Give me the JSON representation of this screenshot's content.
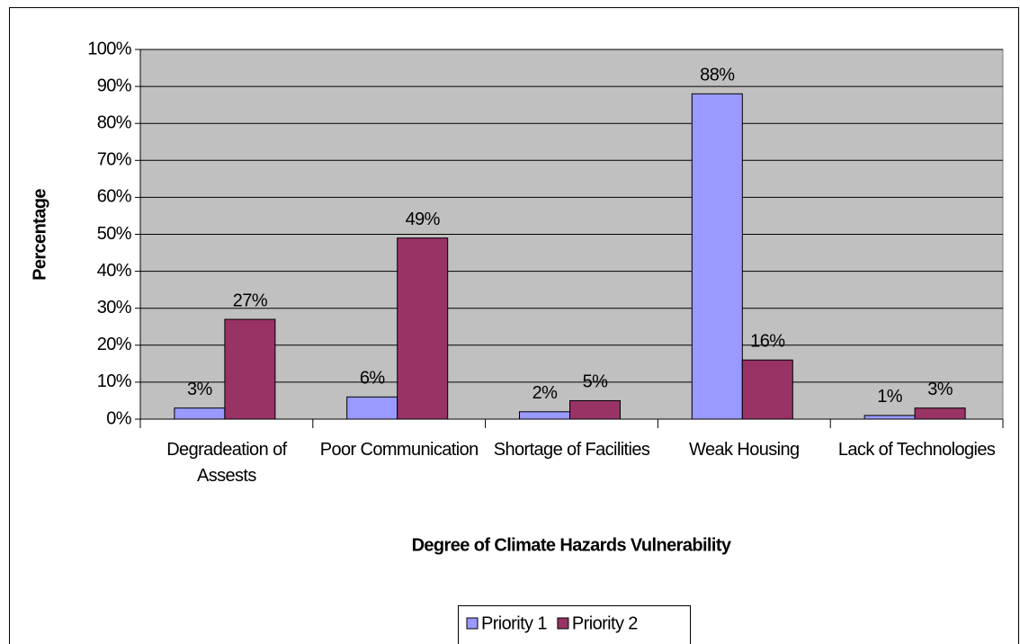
{
  "chart_data": {
    "type": "bar",
    "xlabel": "Degree of Climate Hazards Vulnerability",
    "ylabel": "Percentage",
    "categories": [
      "Degradeation of Assests",
      "Poor Communication",
      "Shortage of Facilities",
      "Weak Housing",
      "Lack of Technologies"
    ],
    "series": [
      {
        "name": "Priority 1",
        "color": "#9999ff",
        "values": [
          3,
          6,
          2,
          88,
          1
        ],
        "value_labels": [
          "3%",
          "6%",
          "2%",
          "88%",
          "1%"
        ]
      },
      {
        "name": "Priority 2",
        "color": "#993366",
        "values": [
          27,
          49,
          5,
          16,
          3
        ],
        "value_labels": [
          "27%",
          "49%",
          "5%",
          "16%",
          "3%"
        ]
      }
    ],
    "ylim": [
      0,
      100
    ],
    "yticks": [
      {
        "value": 0,
        "label": "0%"
      },
      {
        "value": 10,
        "label": "10%"
      },
      {
        "value": 20,
        "label": "20%"
      },
      {
        "value": 30,
        "label": "30%"
      },
      {
        "value": 40,
        "label": "40%"
      },
      {
        "value": 50,
        "label": "50%"
      },
      {
        "value": 60,
        "label": "60%"
      },
      {
        "value": 70,
        "label": "70%"
      },
      {
        "value": 80,
        "label": "80%"
      },
      {
        "value": 90,
        "label": "90%"
      },
      {
        "value": 100,
        "label": "100%"
      }
    ],
    "grid": true,
    "plot_background": "#c0c0c0",
    "legend": "bottom"
  }
}
